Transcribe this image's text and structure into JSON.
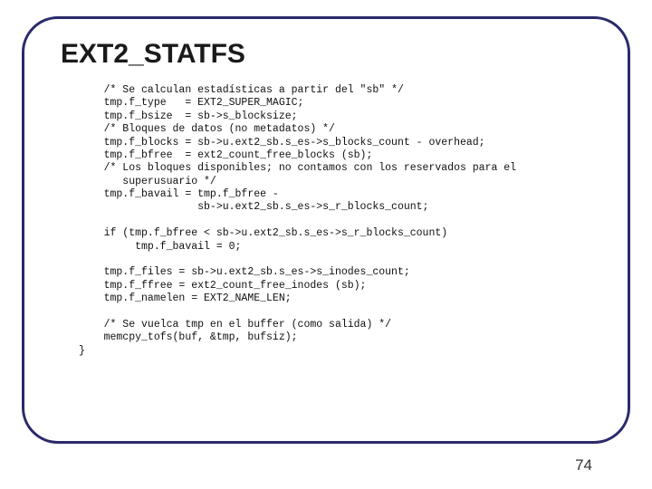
{
  "title": {
    "text": "EXT2_STATFS",
    "fontsize": 30
  },
  "code": {
    "fontsize": 11.5,
    "lines": [
      "/* Se calculan estadísticas a partir del \"sb\" */",
      "tmp.f_type   = EXT2_SUPER_MAGIC;",
      "tmp.f_bsize  = sb->s_blocksize;",
      "/* Bloques de datos (no metadatos) */",
      "tmp.f_blocks = sb->u.ext2_sb.s_es->s_blocks_count - overhead;",
      "tmp.f_bfree  = ext2_count_free_blocks (sb);",
      "/* Los bloques disponibles; no contamos con los reservados para el",
      "   superusuario */",
      "tmp.f_bavail = tmp.f_bfree -",
      "               sb->u.ext2_sb.s_es->s_r_blocks_count;",
      "",
      "if (tmp.f_bfree < sb->u.ext2_sb.s_es->s_r_blocks_count)",
      "     tmp.f_bavail = 0;",
      "",
      "tmp.f_files = sb->u.ext2_sb.s_es->s_inodes_count;",
      "tmp.f_ffree = ext2_count_free_inodes (sb);",
      "tmp.f_namelen = EXT2_NAME_LEN;",
      "",
      "/* Se vuelca tmp en el buffer (como salida) */",
      "memcpy_tofs(buf, &tmp, bufsiz);"
    ],
    "closing_brace": "}"
  },
  "page_number": {
    "text": "74",
    "fontsize": 17
  },
  "colors": {
    "frame_border": "#2a2a6a",
    "background": "#ffffff",
    "title_color": "#1a1a1a",
    "code_color": "#111111",
    "pagenum_color": "#333333"
  }
}
